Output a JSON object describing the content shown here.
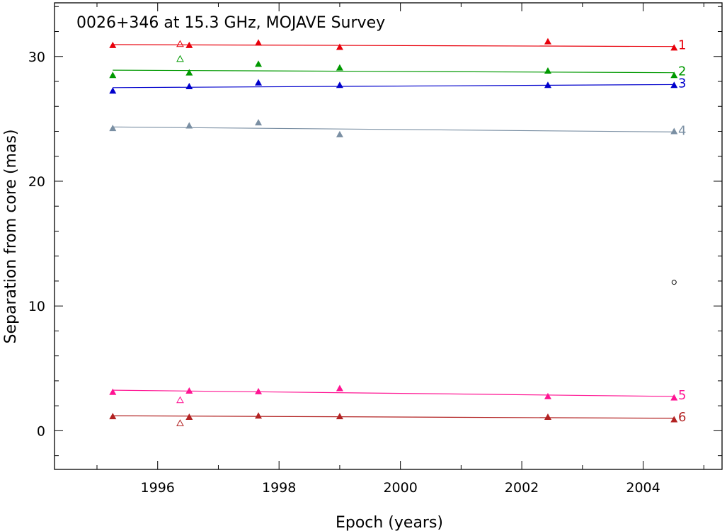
{
  "chart_data": {
    "type": "scatter",
    "title": "0026+346 at 15.3 GHz, MOJAVE Survey",
    "xlabel": "Epoch (years)",
    "ylabel": "Separation from core (mas)",
    "xlim": [
      1994.3,
      2005.3
    ],
    "ylim": [
      -3.1,
      34.3
    ],
    "x_ticks": [
      1996,
      1998,
      2000,
      2002,
      2004
    ],
    "y_ticks": [
      0,
      10,
      20,
      30
    ],
    "grid": false,
    "legend": "none",
    "series": [
      {
        "name": "1",
        "color": "#e8000b",
        "points": [
          [
            1995.26,
            30.9
          ],
          [
            1996.52,
            30.9
          ],
          [
            1997.66,
            31.1
          ],
          [
            1999.0,
            30.75
          ],
          [
            2002.43,
            31.2
          ],
          [
            2004.51,
            30.7
          ]
        ],
        "open_points": [
          [
            1996.37,
            31.0
          ]
        ],
        "fit": [
          [
            1995.26,
            30.95
          ],
          [
            2004.51,
            30.8
          ]
        ]
      },
      {
        "name": "2",
        "color": "#009900",
        "points": [
          [
            1995.26,
            28.5
          ],
          [
            1996.52,
            28.7
          ],
          [
            1997.66,
            29.4
          ],
          [
            1999.0,
            29.1
          ],
          [
            2002.43,
            28.85
          ],
          [
            2004.51,
            28.5
          ]
        ],
        "open_points": [
          [
            1996.37,
            29.8
          ]
        ],
        "fit": [
          [
            1995.26,
            28.9
          ],
          [
            2004.51,
            28.7
          ]
        ]
      },
      {
        "name": "3",
        "color": "#0000cc",
        "points": [
          [
            1995.26,
            27.25
          ],
          [
            1996.52,
            27.6
          ],
          [
            1997.66,
            27.9
          ],
          [
            1999.0,
            27.7
          ],
          [
            2002.43,
            27.7
          ],
          [
            2004.51,
            27.7
          ]
        ],
        "open_points": [],
        "fit": [
          [
            1995.26,
            27.5
          ],
          [
            2004.51,
            27.75
          ]
        ]
      },
      {
        "name": "4",
        "color": "#7a8fa3",
        "points": [
          [
            1995.26,
            24.25
          ],
          [
            1996.52,
            24.45
          ],
          [
            1997.66,
            24.7
          ],
          [
            1999.0,
            23.75
          ],
          [
            2004.51,
            24.0
          ]
        ],
        "open_points": [],
        "fit": [
          [
            1995.26,
            24.35
          ],
          [
            2004.51,
            23.95
          ]
        ]
      },
      {
        "name": "5",
        "color": "#ff1493",
        "points": [
          [
            1995.26,
            3.1
          ],
          [
            1996.52,
            3.2
          ],
          [
            1997.66,
            3.15
          ],
          [
            1999.0,
            3.4
          ],
          [
            2002.43,
            2.75
          ],
          [
            2004.51,
            2.65
          ]
        ],
        "open_points": [
          [
            1996.37,
            2.45
          ]
        ],
        "fit": [
          [
            1995.26,
            3.25
          ],
          [
            2004.51,
            2.75
          ]
        ]
      },
      {
        "name": "6",
        "color": "#b22222",
        "points": [
          [
            1995.26,
            1.15
          ],
          [
            1996.52,
            1.1
          ],
          [
            1997.66,
            1.2
          ],
          [
            1999.0,
            1.15
          ],
          [
            2002.43,
            1.1
          ],
          [
            2004.51,
            0.9
          ]
        ],
        "open_points": [
          [
            1996.37,
            0.6
          ]
        ],
        "fit": [
          [
            1995.26,
            1.2
          ],
          [
            2004.51,
            1.0
          ]
        ]
      }
    ],
    "extra_points": [
      {
        "x": 2004.51,
        "y": 11.9,
        "marker": "circle",
        "color": "#000000"
      }
    ]
  }
}
